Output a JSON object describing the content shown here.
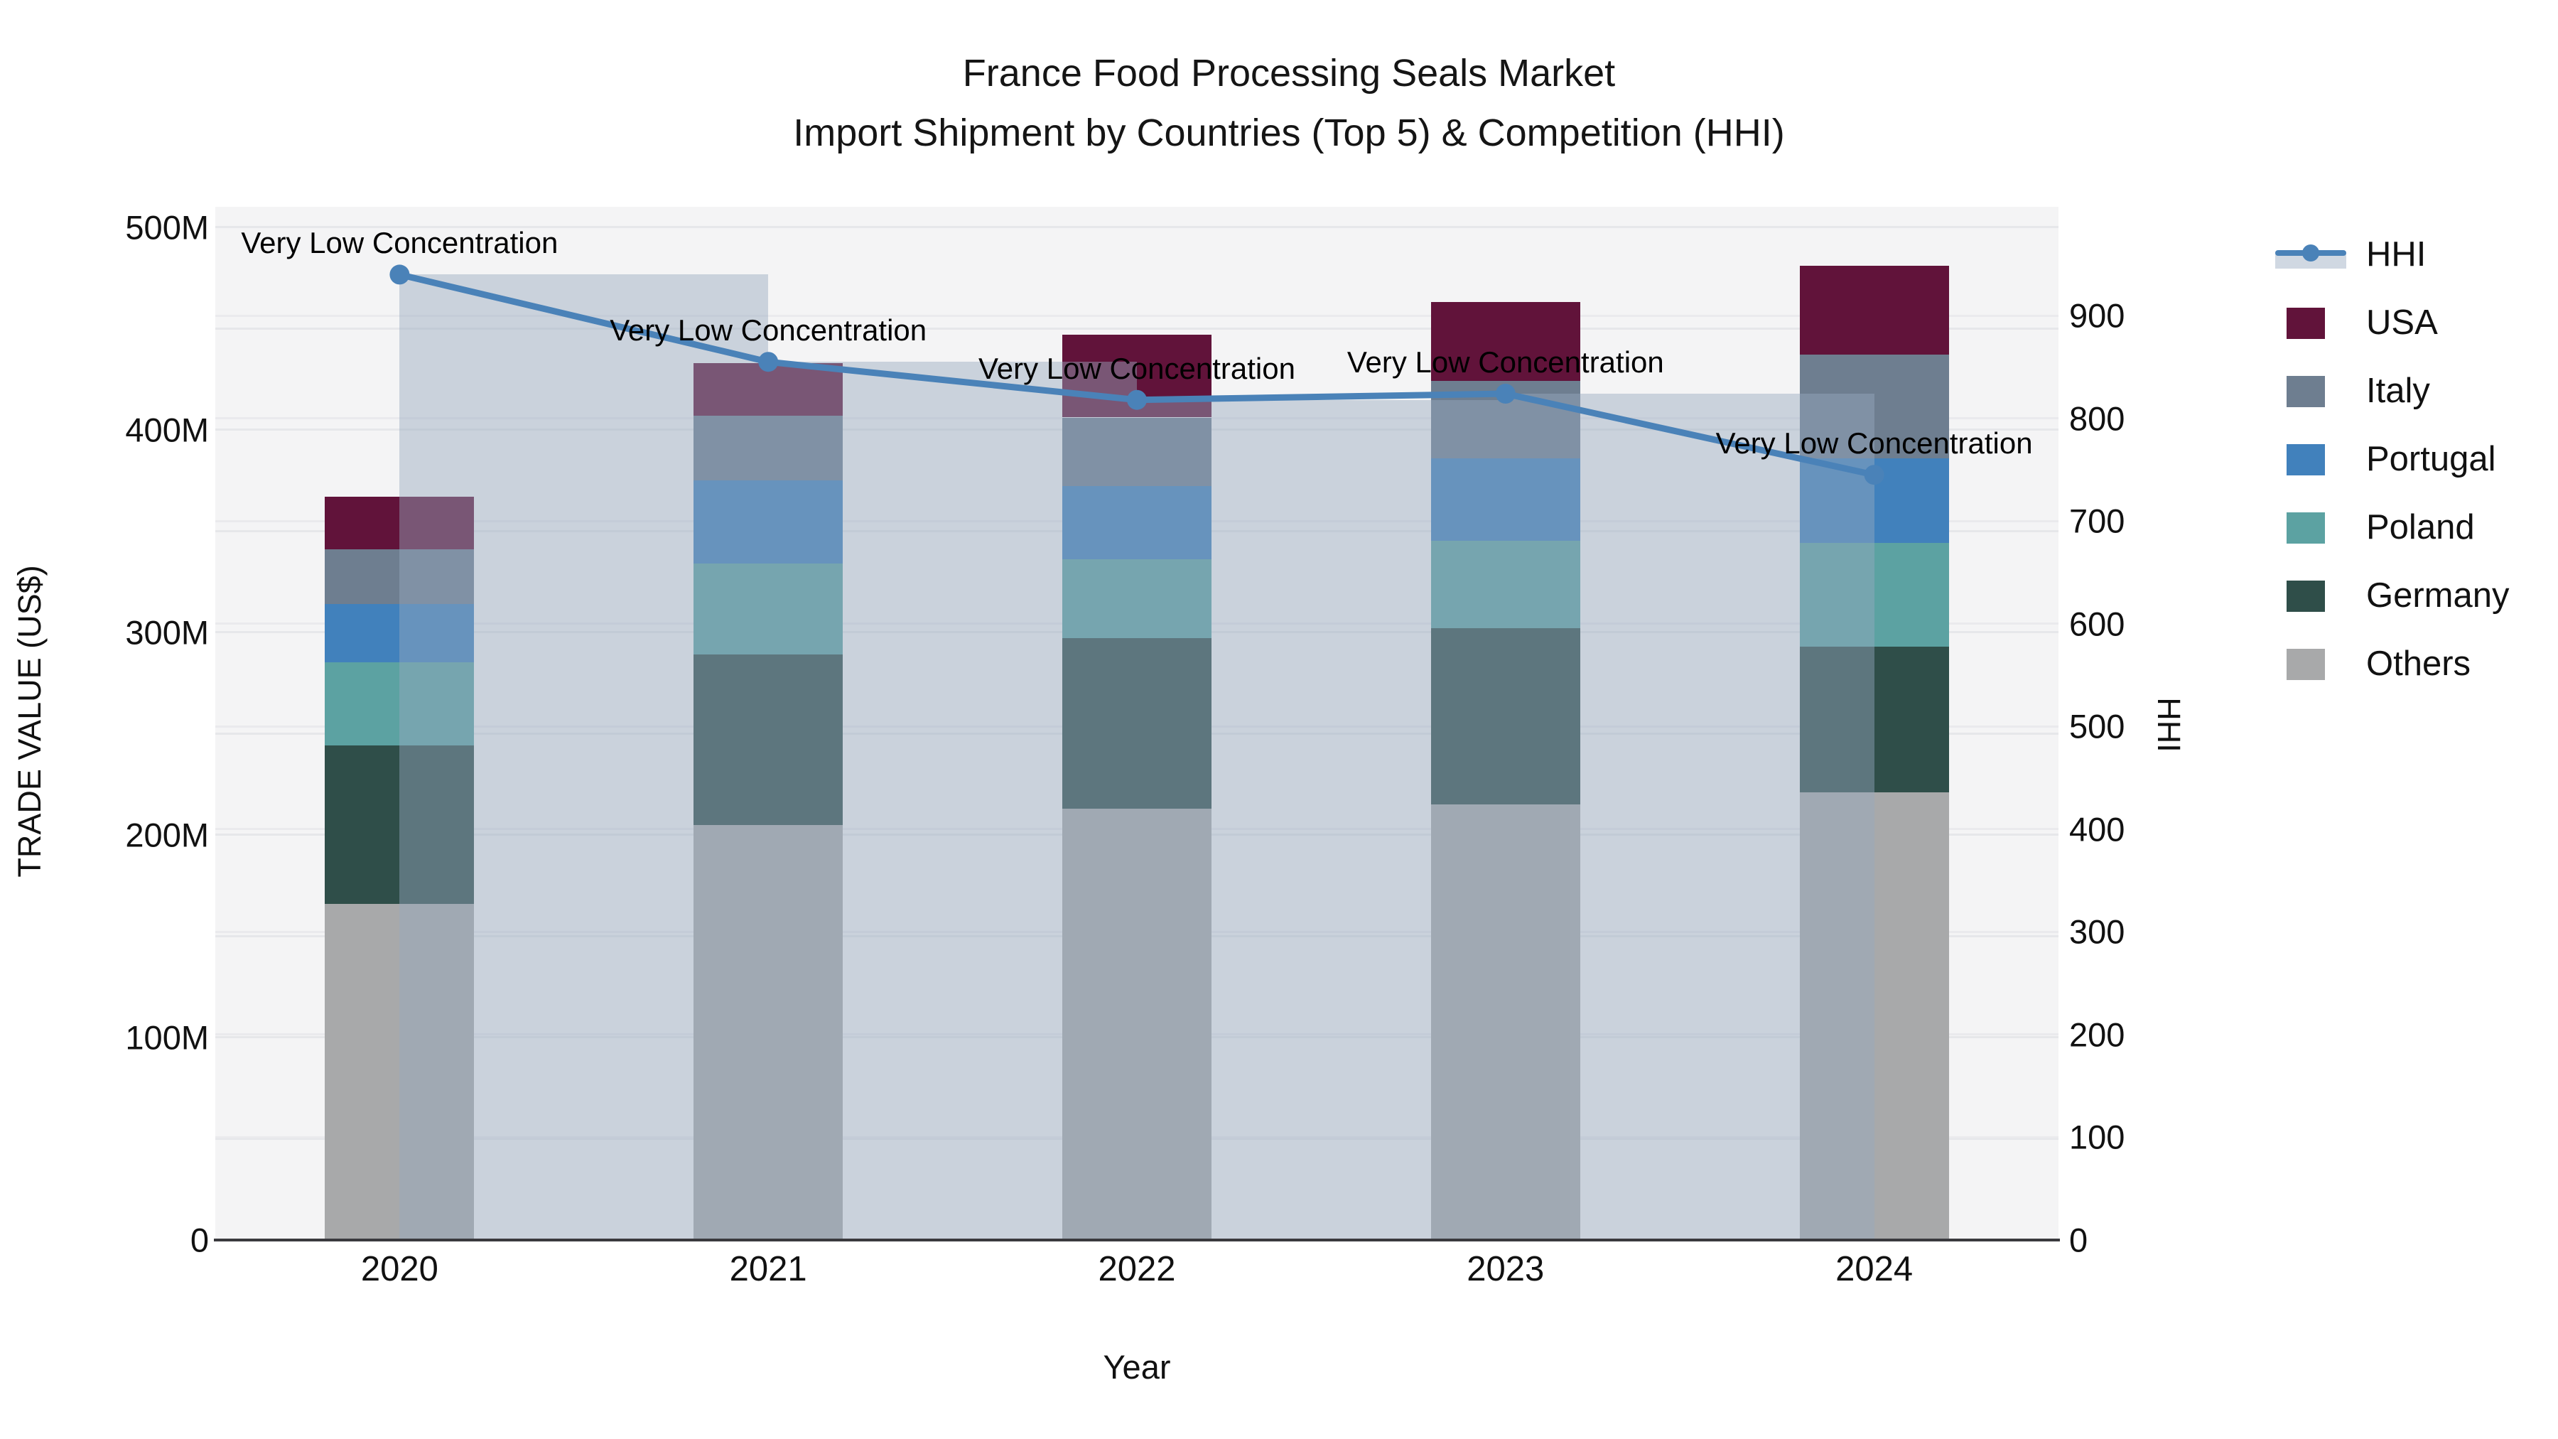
{
  "chart_data": {
    "type": "bar",
    "variant": "stacked-bar-with-hhi-line-dual-axis",
    "title": "France Food Processing Seals Market",
    "subtitle": "Import Shipment by Countries (Top 5) & Competition (HHI)",
    "xlabel": "Year",
    "ylabel_left": "TRADE VALUE (US$)",
    "ylabel_right": "HHI",
    "categories": [
      "2020",
      "2021",
      "2022",
      "2023",
      "2024"
    ],
    "stack_order_bottom_to_top": [
      "Others",
      "Germany",
      "Poland",
      "Portugal",
      "Italy",
      "USA"
    ],
    "series": [
      {
        "name": "Others",
        "color": "#A8A9AA",
        "values": [
          166,
          205,
          213,
          215,
          221
        ]
      },
      {
        "name": "Germany",
        "color": "#2F4E49",
        "values": [
          78,
          84,
          84,
          87,
          72
        ]
      },
      {
        "name": "Poland",
        "color": "#5CA2A2",
        "values": [
          41,
          45,
          39,
          43,
          51
        ]
      },
      {
        "name": "Portugal",
        "color": "#4181BC",
        "values": [
          29,
          41,
          36,
          41,
          42
        ]
      },
      {
        "name": "Italy",
        "color": "#6E7E90",
        "values": [
          27,
          32,
          34,
          38,
          51
        ]
      },
      {
        "name": "USA",
        "color": "#61133A",
        "values": [
          26,
          26,
          41,
          39,
          44
        ]
      }
    ],
    "totals_millions": [
      366,
      433,
      447,
      463,
      481
    ],
    "hhi": {
      "name": "HHI",
      "values": [
        940,
        855,
        818,
        824,
        745
      ],
      "line_color": "#4A82B8",
      "band_color": "rgba(150,168,190,0.45)"
    },
    "annotations": [
      "Very Low Concentration",
      "Very Low Concentration",
      "Very Low Concentration",
      "Very Low Concentration",
      "Very Low Concentration"
    ],
    "axes": {
      "left_ticks": [
        "0",
        "100M",
        "200M",
        "300M",
        "400M",
        "500M"
      ],
      "left_tick_values_millions": [
        0,
        100,
        200,
        300,
        400,
        500
      ],
      "right_ticks": [
        "0",
        "100",
        "200",
        "300",
        "400",
        "500",
        "600",
        "700",
        "800",
        "900"
      ],
      "right_tick_values": [
        0,
        100,
        200,
        300,
        400,
        500,
        600,
        700,
        800,
        900
      ],
      "ylim_left_millions": [
        0,
        510
      ],
      "ylim_right": [
        0,
        1006
      ],
      "grid": true
    },
    "legend": [
      {
        "label": "HHI",
        "type": "line",
        "color": "#4A82B8"
      },
      {
        "label": "USA",
        "type": "swatch",
        "color": "#61133A"
      },
      {
        "label": "Italy",
        "type": "swatch",
        "color": "#6E7E90"
      },
      {
        "label": "Portugal",
        "type": "swatch",
        "color": "#4181BC"
      },
      {
        "label": "Poland",
        "type": "swatch",
        "color": "#5CA2A2"
      },
      {
        "label": "Germany",
        "type": "swatch",
        "color": "#2F4E49"
      },
      {
        "label": "Others",
        "type": "swatch",
        "color": "#A8A9AA"
      }
    ]
  }
}
